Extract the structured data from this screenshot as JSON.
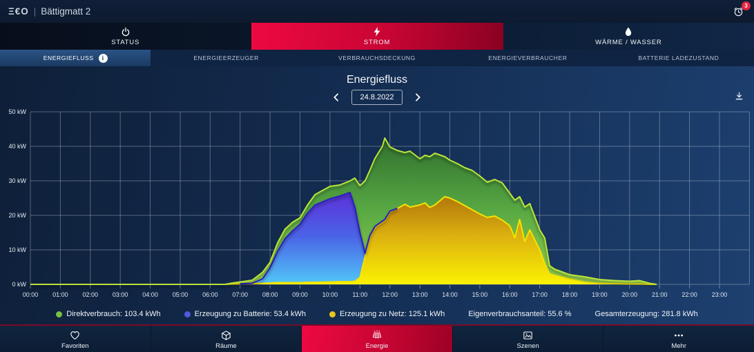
{
  "header": {
    "logo": "Ξ€O",
    "separator": "|",
    "site_name": "Bättigmatt 2",
    "alarm_badge": "3"
  },
  "colors": {
    "accent_red": "#e50940",
    "badge_red": "#e8243f",
    "background_navy": "#132c50"
  },
  "main_tabs": [
    {
      "label": "STATUS",
      "icon": "power-icon",
      "active": false
    },
    {
      "label": "STROM",
      "icon": "lightning-icon",
      "active": true
    },
    {
      "label": "WÄRME / WASSER",
      "icon": "water-drop-icon",
      "active": false
    }
  ],
  "sub_tabs": [
    {
      "label": "ENERGIEFLUSS",
      "selected": true,
      "has_info_icon": true
    },
    {
      "label": "ENERGIEERZEUGER",
      "selected": false
    },
    {
      "label": "VERBRAUCHSDECKUNG",
      "selected": false
    },
    {
      "label": "ENERGIEVERBRAUCHER",
      "selected": false
    },
    {
      "label": "BATTERIE LADEZUSTAND",
      "selected": false
    }
  ],
  "page": {
    "title": "Energiefluss",
    "date": "24.8.2022"
  },
  "chart_data": {
    "type": "area",
    "stacked": true,
    "title": "Energiefluss",
    "ylabel": "kW",
    "ylim": [
      0,
      50
    ],
    "y_ticks": [
      "0 kW",
      "10 kW",
      "20 kW",
      "30 kW",
      "40 kW",
      "50 kW"
    ],
    "x_ticks": [
      "00:00",
      "01:00",
      "02:00",
      "03:00",
      "04:00",
      "05:00",
      "06:00",
      "07:00",
      "08:00",
      "09:00",
      "10:00",
      "11:00",
      "12:00",
      "13:00",
      "14:00",
      "15:00",
      "16:00",
      "17:00",
      "18:00",
      "19:00",
      "20:00",
      "21:00",
      "22:00",
      "23:00"
    ],
    "x_hours": [
      0,
      6.0,
      6.5,
      6.75,
      7.0,
      7.4,
      7.75,
      8.0,
      8.25,
      8.5,
      8.75,
      9.0,
      9.25,
      9.5,
      10.0,
      10.33,
      10.67,
      10.83,
      11.0,
      11.17,
      11.33,
      11.5,
      11.75,
      11.83,
      12.0,
      12.25,
      12.5,
      12.67,
      13.0,
      13.17,
      13.33,
      13.5,
      13.83,
      14.0,
      14.25,
      14.5,
      14.75,
      15.0,
      15.25,
      15.5,
      15.75,
      16.0,
      16.17,
      16.33,
      16.5,
      16.67,
      17.0,
      17.17,
      17.33,
      17.5,
      18.0,
      18.5,
      19.0,
      19.5,
      20.0,
      20.33,
      20.67,
      20.9
    ],
    "series": [
      {
        "name": "Erzeugung zu Netz",
        "total_kwh": 125.1,
        "color_top": "#a86a08",
        "color_mid": "#dcb110",
        "color_bottom": "#fbf201",
        "edge": "#f6e300",
        "values_kw": [
          0,
          0,
          0,
          0.1,
          0.15,
          0.2,
          0.3,
          0.4,
          0.5,
          0.5,
          0.5,
          0.5,
          0.6,
          0.6,
          0.7,
          0.8,
          0.8,
          0.9,
          2,
          8,
          13.8,
          16.5,
          18,
          18.5,
          21,
          22,
          23.2,
          22.4,
          23,
          23.6,
          22.3,
          23,
          25.4,
          25,
          24,
          22.8,
          21.6,
          20.4,
          19.4,
          19.8,
          18.6,
          17,
          13.5,
          18.8,
          12.4,
          15.8,
          10,
          6,
          3,
          2.6,
          1.6,
          0.6,
          0.3,
          0.2,
          0.1,
          0.1,
          0,
          0
        ]
      },
      {
        "name": "Erzeugung zu Batterie",
        "total_kwh": 53.4,
        "color_top": "#5e2bd9",
        "color_mid": "#4a63e6",
        "color_bottom": "#52c7f7",
        "edge": "#2c1fc2",
        "values_kw": [
          0,
          0,
          0,
          0,
          0,
          0.1,
          1.3,
          4.4,
          9,
          12.7,
          15,
          16.9,
          20,
          22.4,
          24.1,
          24.8,
          25.8,
          21.5,
          13,
          1,
          0.3,
          0.3,
          0.3,
          0.3,
          0.2,
          0,
          0,
          0,
          0,
          0,
          0,
          0,
          0,
          0,
          0,
          0,
          0,
          0,
          0,
          0,
          0,
          0,
          0,
          0,
          0,
          0,
          0,
          0,
          0,
          0,
          0,
          0,
          0,
          0,
          0,
          0,
          0,
          0
        ]
      },
      {
        "name": "Direktverbrauch",
        "total_kwh": 103.4,
        "color_top": "#2e6c2d",
        "color_mid": "#57a843",
        "color_bottom": "#96d04c",
        "edge": "#b9e33a",
        "values_kw": [
          0,
          0,
          0,
          0.3,
          0.55,
          0.9,
          1.9,
          1.6,
          2.5,
          2.8,
          2.5,
          1.9,
          2.4,
          3.0,
          3.6,
          3.2,
          3.4,
          8.4,
          13.6,
          21,
          18.9,
          19.7,
          21.7,
          23.6,
          18.6,
          16.8,
          15,
          16.2,
          13.4,
          13.8,
          14.7,
          15,
          11.6,
          11,
          11,
          11,
          11.4,
          11,
          10.2,
          10.6,
          10.8,
          9.4,
          10.9,
          6.6,
          10,
          7.6,
          5.8,
          7.4,
          2.4,
          1.8,
          1.2,
          1.6,
          1.1,
          0.9,
          0.8,
          1.0,
          0.3,
          0
        ]
      }
    ]
  },
  "legend": {
    "items": [
      {
        "dot": "#76c043",
        "label": "Direktverbrauch: 103.4 kWh"
      },
      {
        "dot": "#4f5be0",
        "label": "Erzeugung zu Batterie: 53.4 kWh"
      },
      {
        "dot": "#e3c71f",
        "label": "Erzeugung zu Netz: 125.1 kWh"
      },
      {
        "label": "Eigenverbrauchsanteil: 55.6 %"
      },
      {
        "label": "Gesamterzeugung: 281.8 kWh"
      }
    ]
  },
  "bottom_nav": [
    {
      "label": "Favoriten",
      "icon": "heart-icon",
      "active": false
    },
    {
      "label": "Räume",
      "icon": "cube-icon",
      "active": false
    },
    {
      "label": "Energie",
      "icon": "solar-panel-icon",
      "active": true
    },
    {
      "label": "Szenen",
      "icon": "scene-image-icon",
      "active": false
    },
    {
      "label": "Mehr",
      "icon": "more-dots-icon",
      "active": false
    }
  ]
}
